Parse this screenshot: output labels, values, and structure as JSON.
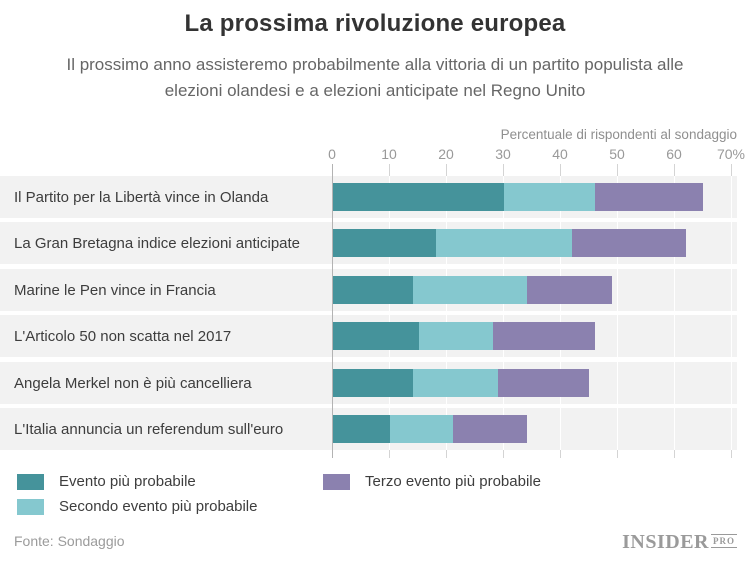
{
  "title": "La prossima rivoluzione europea",
  "subtitle": "Il prossimo anno assisteremo probabilmente alla vittoria di un partito populista alle elezioni olandesi e a elezioni anticipate nel Regno Unito",
  "axis_title": "Percentuale di rispondenti al sondaggio",
  "colors": {
    "first_event": "#45939B",
    "second_event": "#85C8CF",
    "third_event": "#8B81AF",
    "row_band": "#F2F2F2",
    "axis_line": "#B3B3B3",
    "gridline_stub": "#D4D4D4",
    "title_text": "#333333",
    "subtitle_text": "#666666",
    "muted_text": "#9B9B9B"
  },
  "legend": [
    {
      "label": "Evento più probabile",
      "color": "#45939B"
    },
    {
      "label": "Secondo evento più probabile",
      "color": "#85C8CF"
    },
    {
      "label": "Terzo evento più probabile",
      "color": "#8B81AF"
    }
  ],
  "chart_data": {
    "type": "bar",
    "orientation": "horizontal",
    "stacked": true,
    "title": "La prossima rivoluzione europea",
    "xlabel": "Percentuale di rispondenti al sondaggio",
    "xlim": [
      0,
      70
    ],
    "ticks": [
      0,
      10,
      20,
      30,
      40,
      50,
      60,
      70
    ],
    "tick_labels": [
      "0",
      "10",
      "20",
      "30",
      "40",
      "50",
      "60",
      "70%"
    ],
    "grid": true,
    "legend_position": "bottom-left",
    "categories": [
      "Il Partito per la Libertà vince in Olanda",
      "La Gran Bretagna indice elezioni anticipate",
      "Marine le Pen vince in Francia",
      "L'Articolo 50 non scatta nel 2017",
      "Angela Merkel non è più cancelliera",
      "L'Italia annuncia un referendum sull'euro"
    ],
    "series": [
      {
        "name": "Evento più probabile",
        "color": "#45939B",
        "values": [
          30,
          18,
          14,
          15,
          14,
          10
        ]
      },
      {
        "name": "Secondo evento più probabile",
        "color": "#85C8CF",
        "values": [
          16,
          24,
          20,
          13,
          15,
          11
        ]
      },
      {
        "name": "Terzo evento più probabile",
        "color": "#8B81AF",
        "values": [
          19,
          20,
          15,
          18,
          16,
          13
        ]
      }
    ],
    "stack_totals": [
      65,
      62,
      49,
      46,
      45,
      34
    ]
  },
  "footer": {
    "source": "Fonte: Sondaggio",
    "logo_main": "INSIDER",
    "logo_sub": "PRO"
  }
}
